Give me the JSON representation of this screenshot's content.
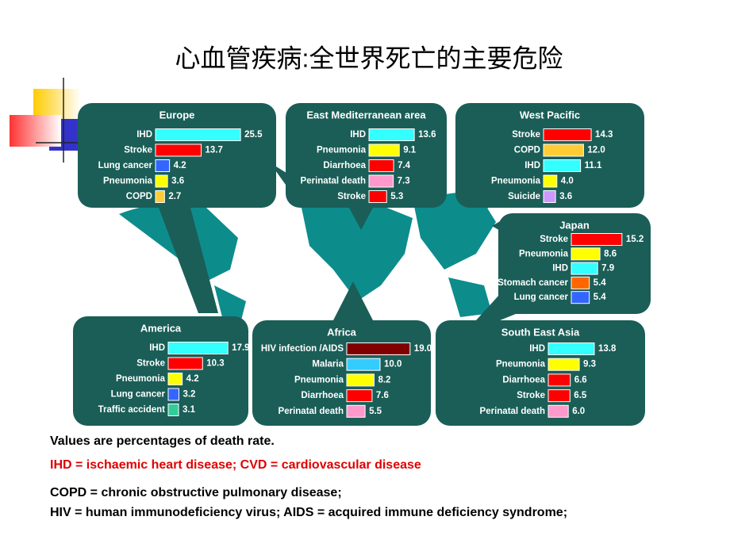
{
  "slide": {
    "title": "心血管疾病:全世界死亡的主要危险",
    "notes": [
      "Values are percentages of death rate.",
      "IHD = ischaemic heart disease; CVD = cardiovascular disease",
      "COPD = chronic obstructive pulmonary disease;",
      "HIV = human immunodeficiency virus; AIDS = acquired immune deficiency syndrome;"
    ]
  },
  "chart_data": [
    {
      "type": "bar",
      "title": "Europe",
      "categories": [
        "IHD",
        "Stroke",
        "Lung cancer",
        "Pneumonia",
        "COPD"
      ],
      "values": [
        25.5,
        13.7,
        4.2,
        3.6,
        2.7
      ],
      "colors": [
        "#33ffff",
        "#ff0000",
        "#3366ff",
        "#ffff00",
        "#ffcc33"
      ]
    },
    {
      "type": "bar",
      "title": "East Mediterranean area",
      "categories": [
        "IHD",
        "Pneumonia",
        "Diarrhoea",
        "Perinatal death",
        "Stroke"
      ],
      "values": [
        13.6,
        9.1,
        7.4,
        7.3,
        5.3
      ],
      "colors": [
        "#33ffff",
        "#ffff00",
        "#ff0000",
        "#ff99cc",
        "#ff0000"
      ]
    },
    {
      "type": "bar",
      "title": "West Pacific",
      "categories": [
        "Stroke",
        "COPD",
        "IHD",
        "Pneumonia",
        "Suicide"
      ],
      "values": [
        14.3,
        12.0,
        11.1,
        4.0,
        3.6
      ],
      "value_labels": [
        "14.3",
        "12.0",
        "11.1",
        "4.0",
        "3.6"
      ],
      "colors": [
        "#ff0000",
        "#ffcc33",
        "#33ffff",
        "#ffff00",
        "#cc99ff"
      ]
    },
    {
      "type": "bar",
      "title": "Japan",
      "categories": [
        "Stroke",
        "Pneumonia",
        "IHD",
        "Stomach cancer",
        "Lung cancer"
      ],
      "values": [
        15.2,
        8.6,
        7.9,
        5.4,
        5.4
      ],
      "colors": [
        "#ff0000",
        "#ffff00",
        "#33ffff",
        "#ff6600",
        "#3366ff"
      ]
    },
    {
      "type": "bar",
      "title": "America",
      "categories": [
        "IHD",
        "Stroke",
        "Pneumonia",
        "Lung cancer",
        "Traffic accident"
      ],
      "values": [
        17.9,
        10.3,
        4.2,
        3.2,
        3.1
      ],
      "colors": [
        "#33ffff",
        "#ff0000",
        "#ffff00",
        "#3366ff",
        "#33cc99"
      ]
    },
    {
      "type": "bar",
      "title": "Africa",
      "categories": [
        "HIV infection /AIDS",
        "Malaria",
        "Pneumonia",
        "Diarrhoea",
        "Perinatal death"
      ],
      "values": [
        19.0,
        10.0,
        8.2,
        7.6,
        5.5
      ],
      "value_labels": [
        "19.0",
        "10.0",
        "8.2",
        "7.6",
        "5.5"
      ],
      "colors": [
        "#800000",
        "#33ccff",
        "#ffff00",
        "#ff0000",
        "#ff99cc"
      ]
    },
    {
      "type": "bar",
      "title": "South East Asia",
      "categories": [
        "IHD",
        "Pneumonia",
        "Diarrhoea",
        "Stroke",
        "Perinatal death"
      ],
      "values": [
        13.8,
        9.3,
        6.6,
        6.5,
        6.0
      ],
      "value_labels": [
        "13.8",
        "9.3",
        "6.6",
        "6.5",
        "6.0"
      ],
      "colors": [
        "#33ffff",
        "#ffff00",
        "#ff0000",
        "#ff0000",
        "#ff99cc"
      ]
    }
  ]
}
